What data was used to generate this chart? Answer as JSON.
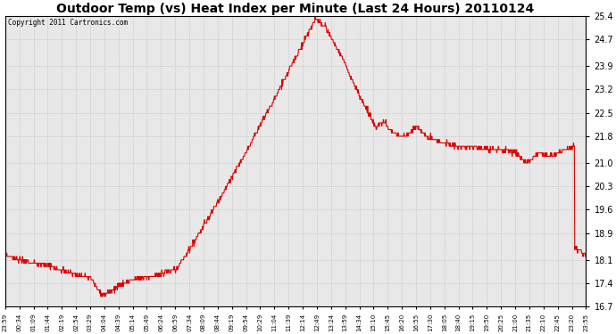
{
  "title": "Outdoor Temp (vs) Heat Index per Minute (Last 24 Hours) 20110124",
  "copyright": "Copyright 2011 Cartronics.com",
  "line_color": "#dd0000",
  "background_color": "#ffffff",
  "plot_bg_color": "#e8e8e8",
  "yticks": [
    16.7,
    17.4,
    18.1,
    18.9,
    19.6,
    20.3,
    21.0,
    21.8,
    22.5,
    23.2,
    23.9,
    24.7,
    25.4
  ],
  "ylim": [
    16.7,
    25.4
  ],
  "xtick_labels": [
    "23:59",
    "00:34",
    "01:09",
    "01:44",
    "02:19",
    "02:54",
    "03:29",
    "04:04",
    "04:39",
    "05:14",
    "05:49",
    "06:24",
    "06:59",
    "07:34",
    "08:09",
    "08:44",
    "09:19",
    "09:54",
    "10:29",
    "11:04",
    "11:39",
    "12:14",
    "12:49",
    "13:24",
    "13:59",
    "14:34",
    "15:10",
    "15:45",
    "16:20",
    "16:55",
    "17:30",
    "18:05",
    "18:40",
    "19:15",
    "19:50",
    "20:25",
    "21:00",
    "21:35",
    "22:10",
    "22:45",
    "23:20",
    "23:55"
  ],
  "grid_color": "#bbbbbb",
  "title_fontsize": 10,
  "ylabel_fontsize": 7,
  "xlabel_fontsize": 5.5
}
